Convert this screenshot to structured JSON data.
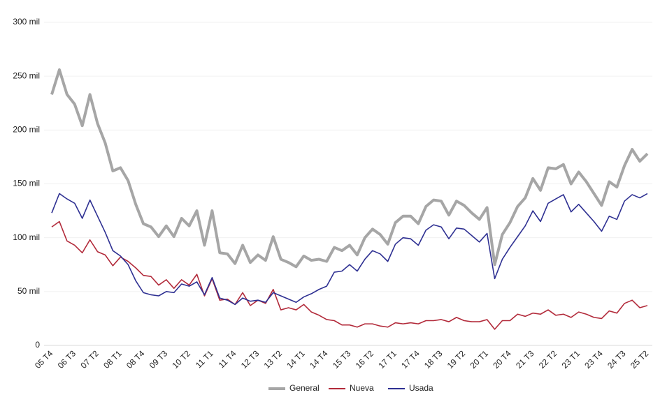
{
  "chart_data": {
    "type": "line",
    "categories": [
      "05 T4",
      null,
      null,
      "06 T3",
      null,
      null,
      "07 T2",
      null,
      null,
      "08 T1",
      null,
      null,
      "08 T4",
      null,
      null,
      "09 T3",
      null,
      null,
      "10 T2",
      null,
      null,
      "11 T1",
      null,
      null,
      "11 T4",
      null,
      null,
      "12 T3",
      null,
      null,
      "13 T2",
      null,
      null,
      "14 T1",
      null,
      null,
      "14 T4",
      null,
      null,
      "15 T3",
      null,
      null,
      "16 T2",
      null,
      null,
      "17 T1",
      null,
      null,
      "17 T4",
      null,
      null,
      "18 T3",
      null,
      null,
      "19 T2",
      null,
      null,
      "20 T1",
      null,
      null,
      "20 T4",
      null,
      null,
      "21 T3",
      null,
      null,
      "22 T2",
      null,
      null,
      "23 T1",
      null,
      null,
      "23 T4",
      null,
      null,
      "24 T3",
      null,
      null,
      "25 T2"
    ],
    "series": [
      {
        "name": "General",
        "color": "#a6a6a6",
        "values": [
          233,
          256,
          233,
          224,
          204,
          233,
          206,
          188,
          162,
          165,
          153,
          131,
          113,
          110,
          101,
          111,
          101,
          118,
          111,
          125,
          93,
          125,
          86,
          85,
          76,
          93,
          77,
          84,
          79,
          101,
          80,
          77,
          73,
          83,
          79,
          80,
          78,
          91,
          88,
          93,
          84,
          100,
          108,
          103,
          94,
          114,
          120,
          120,
          113,
          129,
          135,
          134,
          121,
          134,
          130,
          123,
          117,
          128,
          75,
          103,
          114,
          129,
          137,
          155,
          144,
          165,
          164,
          168,
          150,
          161,
          152,
          141,
          130,
          152,
          147,
          167,
          182,
          171,
          178
        ]
      },
      {
        "name": "Nueva",
        "color": "#b22a3a",
        "values": [
          110,
          115,
          97,
          93,
          86,
          98,
          87,
          84,
          74,
          82,
          78,
          72,
          65,
          64,
          56,
          61,
          53,
          61,
          56,
          66,
          46,
          62,
          42,
          43,
          38,
          49,
          37,
          42,
          39,
          52,
          33,
          35,
          33,
          38,
          31,
          28,
          24,
          23,
          19,
          19,
          17,
          20,
          20,
          18,
          17,
          21,
          20,
          21,
          20,
          23,
          23,
          24,
          22,
          26,
          23,
          22,
          22,
          24,
          15,
          23,
          23,
          29,
          27,
          30,
          29,
          33,
          28,
          29,
          26,
          31,
          29,
          26,
          25,
          32,
          30,
          39,
          42,
          35,
          37
        ]
      },
      {
        "name": "Usada",
        "color": "#2e3092",
        "values": [
          123,
          141,
          136,
          132,
          118,
          135,
          120,
          105,
          88,
          83,
          75,
          60,
          49,
          47,
          46,
          50,
          49,
          57,
          55,
          59,
          47,
          63,
          44,
          42,
          38,
          44,
          41,
          42,
          40,
          49,
          46,
          43,
          40,
          45,
          48,
          52,
          55,
          68,
          69,
          75,
          69,
          80,
          88,
          85,
          78,
          94,
          100,
          99,
          93,
          107,
          112,
          110,
          99,
          109,
          108,
          102,
          96,
          104,
          62,
          80,
          91,
          101,
          111,
          125,
          115,
          132,
          136,
          140,
          124,
          131,
          123,
          115,
          106,
          120,
          117,
          134,
          140,
          137,
          141
        ]
      }
    ],
    "ylim": [
      0,
      300
    ],
    "yticks": [
      0,
      {
        "value": 50,
        "label": "50 mil"
      },
      {
        "value": 100,
        "label": "100 mil"
      },
      {
        "value": 150,
        "label": "150 mil"
      },
      {
        "value": 200,
        "label": "200 mil"
      },
      {
        "value": 250,
        "label": "250 mil"
      },
      {
        "value": 300,
        "label": "300 mil"
      }
    ],
    "grid": true,
    "legend": "bottom"
  }
}
